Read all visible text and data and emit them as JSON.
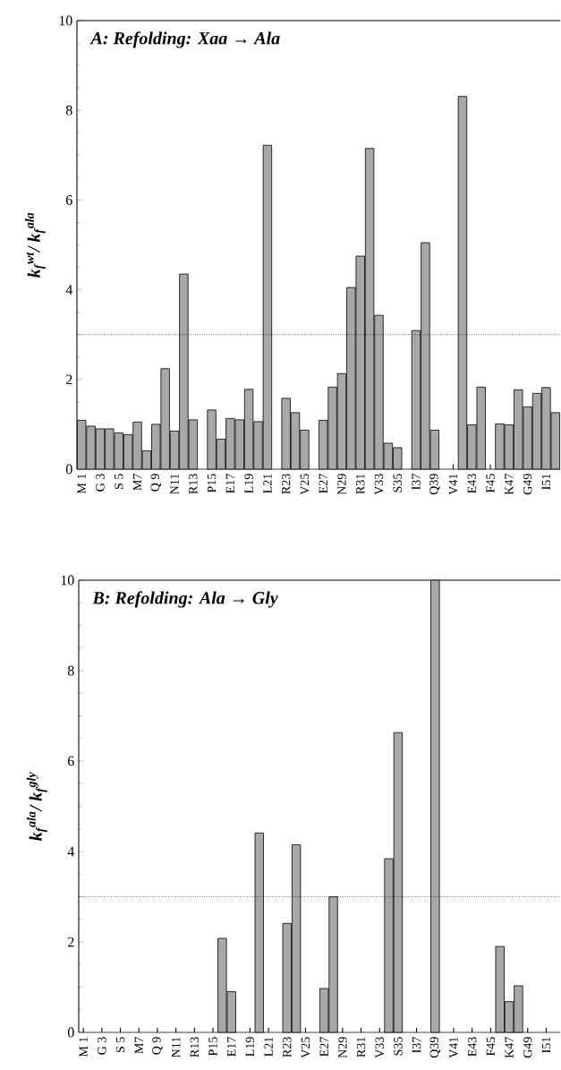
{
  "chart_data": [
    {
      "type": "bar",
      "title": "A: Refolding:  Xaa → Ala",
      "ylabel": "k$_{f}$$^{wt}$/ k$_{f}$$^{ala}$",
      "categories": [
        "M 1",
        null,
        "G 3",
        null,
        "S 5",
        null,
        "M7",
        null,
        "Q 9",
        null,
        "N11",
        null,
        "R13",
        null,
        "P15",
        null,
        "E17",
        null,
        "L19",
        null,
        "L21",
        null,
        "R23",
        null,
        "V25",
        null,
        "E27",
        null,
        "N29",
        null,
        "R31",
        null,
        "V33",
        null,
        "S35",
        null,
        "I37",
        null,
        "Q39",
        null,
        "V41",
        null,
        "E43",
        null,
        "F45",
        null,
        "K47",
        null,
        "G49",
        null,
        "I51",
        null
      ],
      "values": [
        1.09,
        0.96,
        0.9,
        0.9,
        0.81,
        0.77,
        1.05,
        0.41,
        1.0,
        2.24,
        0.85,
        4.35,
        1.1,
        null,
        1.32,
        0.67,
        1.13,
        1.1,
        1.78,
        1.06,
        7.22,
        null,
        1.58,
        1.26,
        0.87,
        null,
        1.09,
        1.83,
        2.13,
        4.05,
        4.75,
        7.15,
        3.43,
        0.58,
        0.48,
        null,
        3.09,
        5.05,
        0.87,
        null,
        null,
        8.31,
        0.99,
        1.83,
        null,
        1.01,
        0.99,
        1.77,
        1.39,
        1.69,
        1.82,
        1.26
      ],
      "color": "#a8a8a8",
      "ylim": [
        0,
        10
      ],
      "yticks": [
        0,
        2,
        4,
        6,
        8,
        10
      ],
      "ref_lines": [
        {
          "axis": "y",
          "value": 3,
          "line_style": "dotted"
        }
      ]
    },
    {
      "type": "bar",
      "title": "B: Refolding:  Ala → Gly",
      "ylabel": "k$_{f}$$^{ala}$/ k$_{f}$$^{gly}$",
      "categories": [
        "M 1",
        null,
        "G 3",
        null,
        "S 5",
        null,
        "M7",
        null,
        "Q 9",
        null,
        "N11",
        null,
        "R13",
        null,
        "P15",
        null,
        "E17",
        null,
        "L19",
        null,
        "L21",
        null,
        "R23",
        null,
        "V25",
        null,
        "E27",
        null,
        "N29",
        null,
        "R31",
        null,
        "V33",
        null,
        "S35",
        null,
        "I37",
        null,
        "Q39",
        null,
        "V41",
        null,
        "E43",
        null,
        "F45",
        null,
        "K47",
        null,
        "G49",
        null,
        "I51",
        null
      ],
      "values": [
        null,
        null,
        null,
        null,
        null,
        null,
        null,
        null,
        null,
        null,
        null,
        null,
        null,
        null,
        null,
        2.08,
        0.9,
        null,
        null,
        4.41,
        null,
        null,
        2.41,
        4.15,
        null,
        null,
        0.97,
        3.0,
        null,
        null,
        null,
        null,
        null,
        3.84,
        6.63,
        null,
        null,
        null,
        10,
        null,
        null,
        null,
        null,
        null,
        null,
        1.9,
        0.68,
        1.03,
        null,
        null,
        null,
        null
      ],
      "color": "#a8a8a8",
      "ylim": [
        0,
        10
      ],
      "yticks": [
        0,
        2,
        4,
        6,
        8,
        10
      ],
      "ref_lines": [
        {
          "axis": "y",
          "value": 3,
          "line_style": "dotted"
        }
      ]
    }
  ]
}
